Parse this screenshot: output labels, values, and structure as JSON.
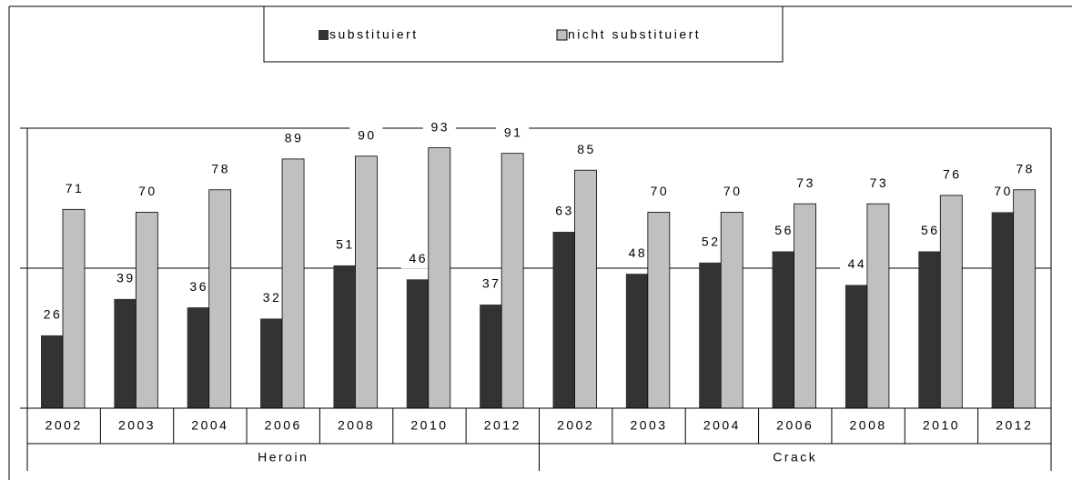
{
  "chart_data": {
    "type": "bar",
    "groups": [
      {
        "name": "Heroin",
        "categories": [
          "2002",
          "2003",
          "2004",
          "2006",
          "2008",
          "2010",
          "2012"
        ]
      },
      {
        "name": "Crack",
        "categories": [
          "2002",
          "2003",
          "2004",
          "2006",
          "2008",
          "2010",
          "2012"
        ]
      }
    ],
    "series": [
      {
        "name": "substituiert",
        "color": "#333333",
        "values": [
          26,
          39,
          36,
          32,
          51,
          46,
          37,
          63,
          48,
          52,
          56,
          44,
          56,
          70
        ]
      },
      {
        "name": "nicht substituiert",
        "color": "#c0c0c0",
        "values": [
          71,
          70,
          78,
          89,
          90,
          93,
          91,
          85,
          70,
          70,
          73,
          73,
          76,
          78
        ]
      }
    ],
    "ylim": [
      0,
      100
    ],
    "yticks": [
      0,
      50,
      100
    ],
    "grid": true
  }
}
